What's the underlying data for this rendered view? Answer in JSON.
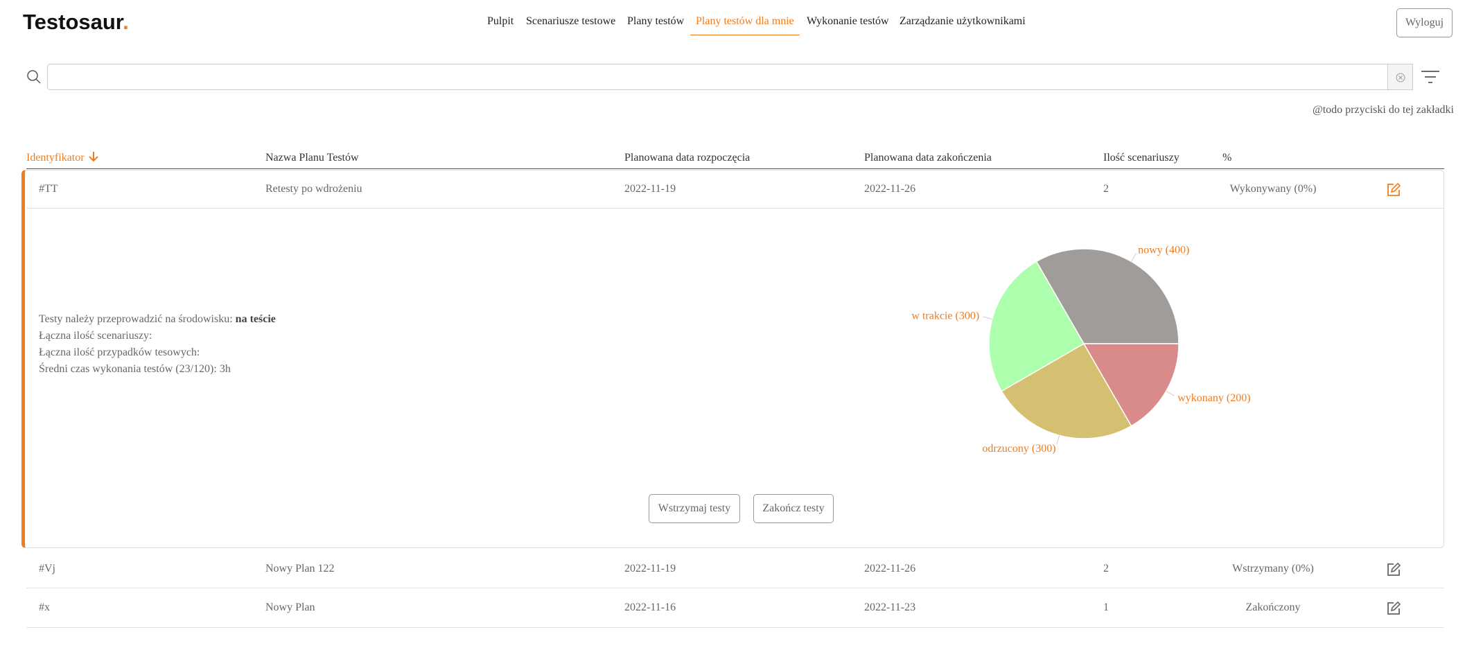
{
  "header": {
    "logo": "Testosaur",
    "logo_dot": ".",
    "nav": [
      "Pulpit",
      "Scenariusze testowe",
      "Plany testów",
      "Plany testów dla mnie",
      "Wykonanie testów",
      "Zarządzanie użytkownikami"
    ],
    "logout": "Wyloguj"
  },
  "note": "@todo przyciski do tej zakładki",
  "table": {
    "columns": [
      "Identyfikator",
      "Nazwa Planu Testów",
      "Planowana data rozpoczęcia",
      "Planowana data zakończenia",
      "Ilość scenariuszy",
      "%"
    ],
    "rows": [
      [
        "#TT",
        "Retesty po wdrożeniu",
        "2022-11-19",
        "2022-11-26",
        2,
        "Wykonywany (0%)"
      ],
      [
        "#Vj",
        "Nowy Plan 122",
        "2022-11-19",
        "2022-11-26",
        2,
        "Wstrzymany (0%)"
      ],
      [
        "#x",
        "Nowy Plan",
        "2022-11-16",
        "2022-11-23",
        1,
        "Zakończony"
      ]
    ]
  },
  "details": {
    "environment": [
      "Testy należy przeprowadzić na środowisku:",
      "na teście"
    ],
    "lines": [
      "Łączna ilość scenariuszy:",
      "Łączna ilość przypadków tesowych:",
      "Średni czas wykonania testów (23/120): 3h"
    ]
  },
  "chart": {
    "type": "pie",
    "labels": [
      "nowy (400)",
      "w trakcie (300)",
      "odrzucony (300)",
      "wykonany (200)"
    ],
    "values": [
      400,
      300,
      300,
      200
    ],
    "colors": [
      "#a09c9a",
      "#adffad",
      "#d4c070",
      "#d98a8a"
    ],
    "start_angle": 0,
    "counterclock": true
  },
  "buttons": [
    "Wstrzymaj testy",
    "Zakończ testy"
  ]
}
